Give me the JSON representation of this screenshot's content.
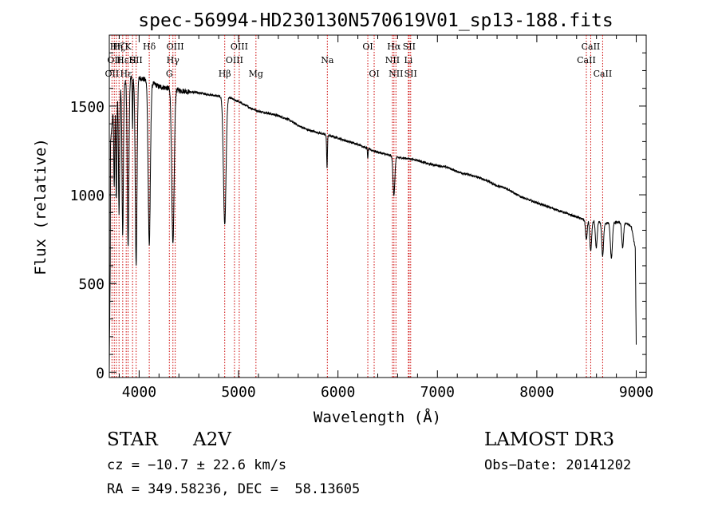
{
  "chart_data": {
    "type": "line",
    "title": "spec-56994-HD230130N570619V01_sp13-188.fits",
    "xlabel": "Wavelength (Å)",
    "ylabel": "Flux (relative)",
    "xlim": [
      3700,
      9100
    ],
    "ylim": [
      -30,
      1900
    ],
    "xticks": [
      4000,
      5000,
      6000,
      7000,
      8000,
      9000
    ],
    "yticks": [
      0,
      500,
      1000,
      1500
    ],
    "grid": false,
    "series": [
      {
        "name": "spectrum",
        "continuum": [
          [
            3700,
            1200
          ],
          [
            3750,
            1550
          ],
          [
            3800,
            1600
          ],
          [
            3900,
            1660
          ],
          [
            4000,
            1660
          ],
          [
            4100,
            1640
          ],
          [
            4200,
            1610
          ],
          [
            4300,
            1600
          ],
          [
            4400,
            1590
          ],
          [
            4500,
            1580
          ],
          [
            4600,
            1575
          ],
          [
            4700,
            1565
          ],
          [
            4800,
            1555
          ],
          [
            4900,
            1550
          ],
          [
            5000,
            1525
          ],
          [
            5100,
            1495
          ],
          [
            5200,
            1470
          ],
          [
            5300,
            1460
          ],
          [
            5400,
            1445
          ],
          [
            5500,
            1425
          ],
          [
            5600,
            1390
          ],
          [
            5700,
            1365
          ],
          [
            5800,
            1350
          ],
          [
            5900,
            1335
          ],
          [
            6000,
            1320
          ],
          [
            6100,
            1300
          ],
          [
            6200,
            1285
          ],
          [
            6300,
            1260
          ],
          [
            6400,
            1240
          ],
          [
            6500,
            1225
          ],
          [
            6600,
            1210
          ],
          [
            6700,
            1205
          ],
          [
            6800,
            1195
          ],
          [
            6900,
            1175
          ],
          [
            7000,
            1165
          ],
          [
            7100,
            1155
          ],
          [
            7200,
            1130
          ],
          [
            7300,
            1115
          ],
          [
            7400,
            1100
          ],
          [
            7500,
            1080
          ],
          [
            7600,
            1050
          ],
          [
            7700,
            1035
          ],
          [
            7800,
            1000
          ],
          [
            7900,
            975
          ],
          [
            8000,
            955
          ],
          [
            8100,
            935
          ],
          [
            8200,
            915
          ],
          [
            8300,
            895
          ],
          [
            8400,
            875
          ],
          [
            8500,
            855
          ],
          [
            8600,
            850
          ],
          [
            8700,
            840
          ],
          [
            8800,
            845
          ],
          [
            8900,
            840
          ],
          [
            8950,
            820
          ],
          [
            8990,
            700
          ],
          [
            9000,
            150
          ]
        ],
        "absorption": [
          {
            "center": 3750,
            "depth": 500,
            "width": 5
          },
          {
            "center": 3771,
            "depth": 600,
            "width": 5
          },
          {
            "center": 3798,
            "depth": 700,
            "width": 6
          },
          {
            "center": 3835,
            "depth": 850,
            "width": 7
          },
          {
            "center": 3889,
            "depth": 950,
            "width": 8
          },
          {
            "center": 3934,
            "depth": 300,
            "width": 3
          },
          {
            "center": 3970,
            "depth": 1050,
            "width": 9
          },
          {
            "center": 4102,
            "depth": 920,
            "width": 11
          },
          {
            "center": 4340,
            "depth": 880,
            "width": 12
          },
          {
            "center": 4861,
            "depth": 720,
            "width": 13
          },
          {
            "center": 5890,
            "depth": 180,
            "width": 4
          },
          {
            "center": 6300,
            "depth": 60,
            "width": 3
          },
          {
            "center": 6563,
            "depth": 220,
            "width": 9
          },
          {
            "center": 8498,
            "depth": 110,
            "width": 8
          },
          {
            "center": 8542,
            "depth": 170,
            "width": 9
          },
          {
            "center": 8598,
            "depth": 150,
            "width": 9
          },
          {
            "center": 8662,
            "depth": 190,
            "width": 9
          },
          {
            "center": 8750,
            "depth": 200,
            "width": 10
          },
          {
            "center": 8863,
            "depth": 140,
            "width": 9
          }
        ]
      }
    ],
    "line_markers": [
      {
        "wavelength": 3727,
        "label": "OII",
        "row": 2
      },
      {
        "wavelength": 3750,
        "label": "OII",
        "row": 1
      },
      {
        "wavelength": 3771,
        "label": "Hη",
        "row": 0
      },
      {
        "wavelength": 3798,
        "label": "Hζ",
        "row": 0
      },
      {
        "wavelength": 3835,
        "label": "Hε",
        "row": 1
      },
      {
        "wavelength": 3870,
        "label": "Hε",
        "row": 2
      },
      {
        "wavelength": 3889,
        "label": "K",
        "row": 0
      },
      {
        "wavelength": 3934,
        "label": "H",
        "row": 1
      },
      {
        "wavelength": 3970,
        "label": "SII",
        "row": 1
      },
      {
        "wavelength": 4102,
        "label": "Hδ",
        "row": 0
      },
      {
        "wavelength": 4304,
        "label": "G",
        "row": 2
      },
      {
        "wavelength": 4340,
        "label": "Hγ",
        "row": 1
      },
      {
        "wavelength": 4363,
        "label": "OIII",
        "row": 0
      },
      {
        "wavelength": 4861,
        "label": "Hβ",
        "row": 2
      },
      {
        "wavelength": 4959,
        "label": "OIII",
        "row": 1
      },
      {
        "wavelength": 5007,
        "label": "OIII",
        "row": 0
      },
      {
        "wavelength": 5175,
        "label": "Mg",
        "row": 2
      },
      {
        "wavelength": 5893,
        "label": "Na",
        "row": 1
      },
      {
        "wavelength": 6300,
        "label": "OI",
        "row": 0
      },
      {
        "wavelength": 6364,
        "label": "OI",
        "row": 2
      },
      {
        "wavelength": 6548,
        "label": "NII",
        "row": 1
      },
      {
        "wavelength": 6563,
        "label": "Hα",
        "row": 0
      },
      {
        "wavelength": 6583,
        "label": "NII",
        "row": 2
      },
      {
        "wavelength": 6708,
        "label": "Li",
        "row": 1
      },
      {
        "wavelength": 6716,
        "label": "SII",
        "row": 0
      },
      {
        "wavelength": 6731,
        "label": "SII",
        "row": 2
      },
      {
        "wavelength": 8498,
        "label": "CaII",
        "row": 1
      },
      {
        "wavelength": 8542,
        "label": "CaII",
        "row": 0
      },
      {
        "wavelength": 8662,
        "label": "CaII",
        "row": 2
      }
    ],
    "line_marker_color": "#cc0000",
    "line_color": "#000000"
  },
  "info": {
    "object_class": "STAR",
    "subclass": "A2V",
    "survey": "LAMOST DR3",
    "redshift": "cz = −10.7 ± 22.6 km/s",
    "obs_date": "Obs−Date: 20141202",
    "coords": "RA = 349.58236, DEC =  58.13605"
  }
}
